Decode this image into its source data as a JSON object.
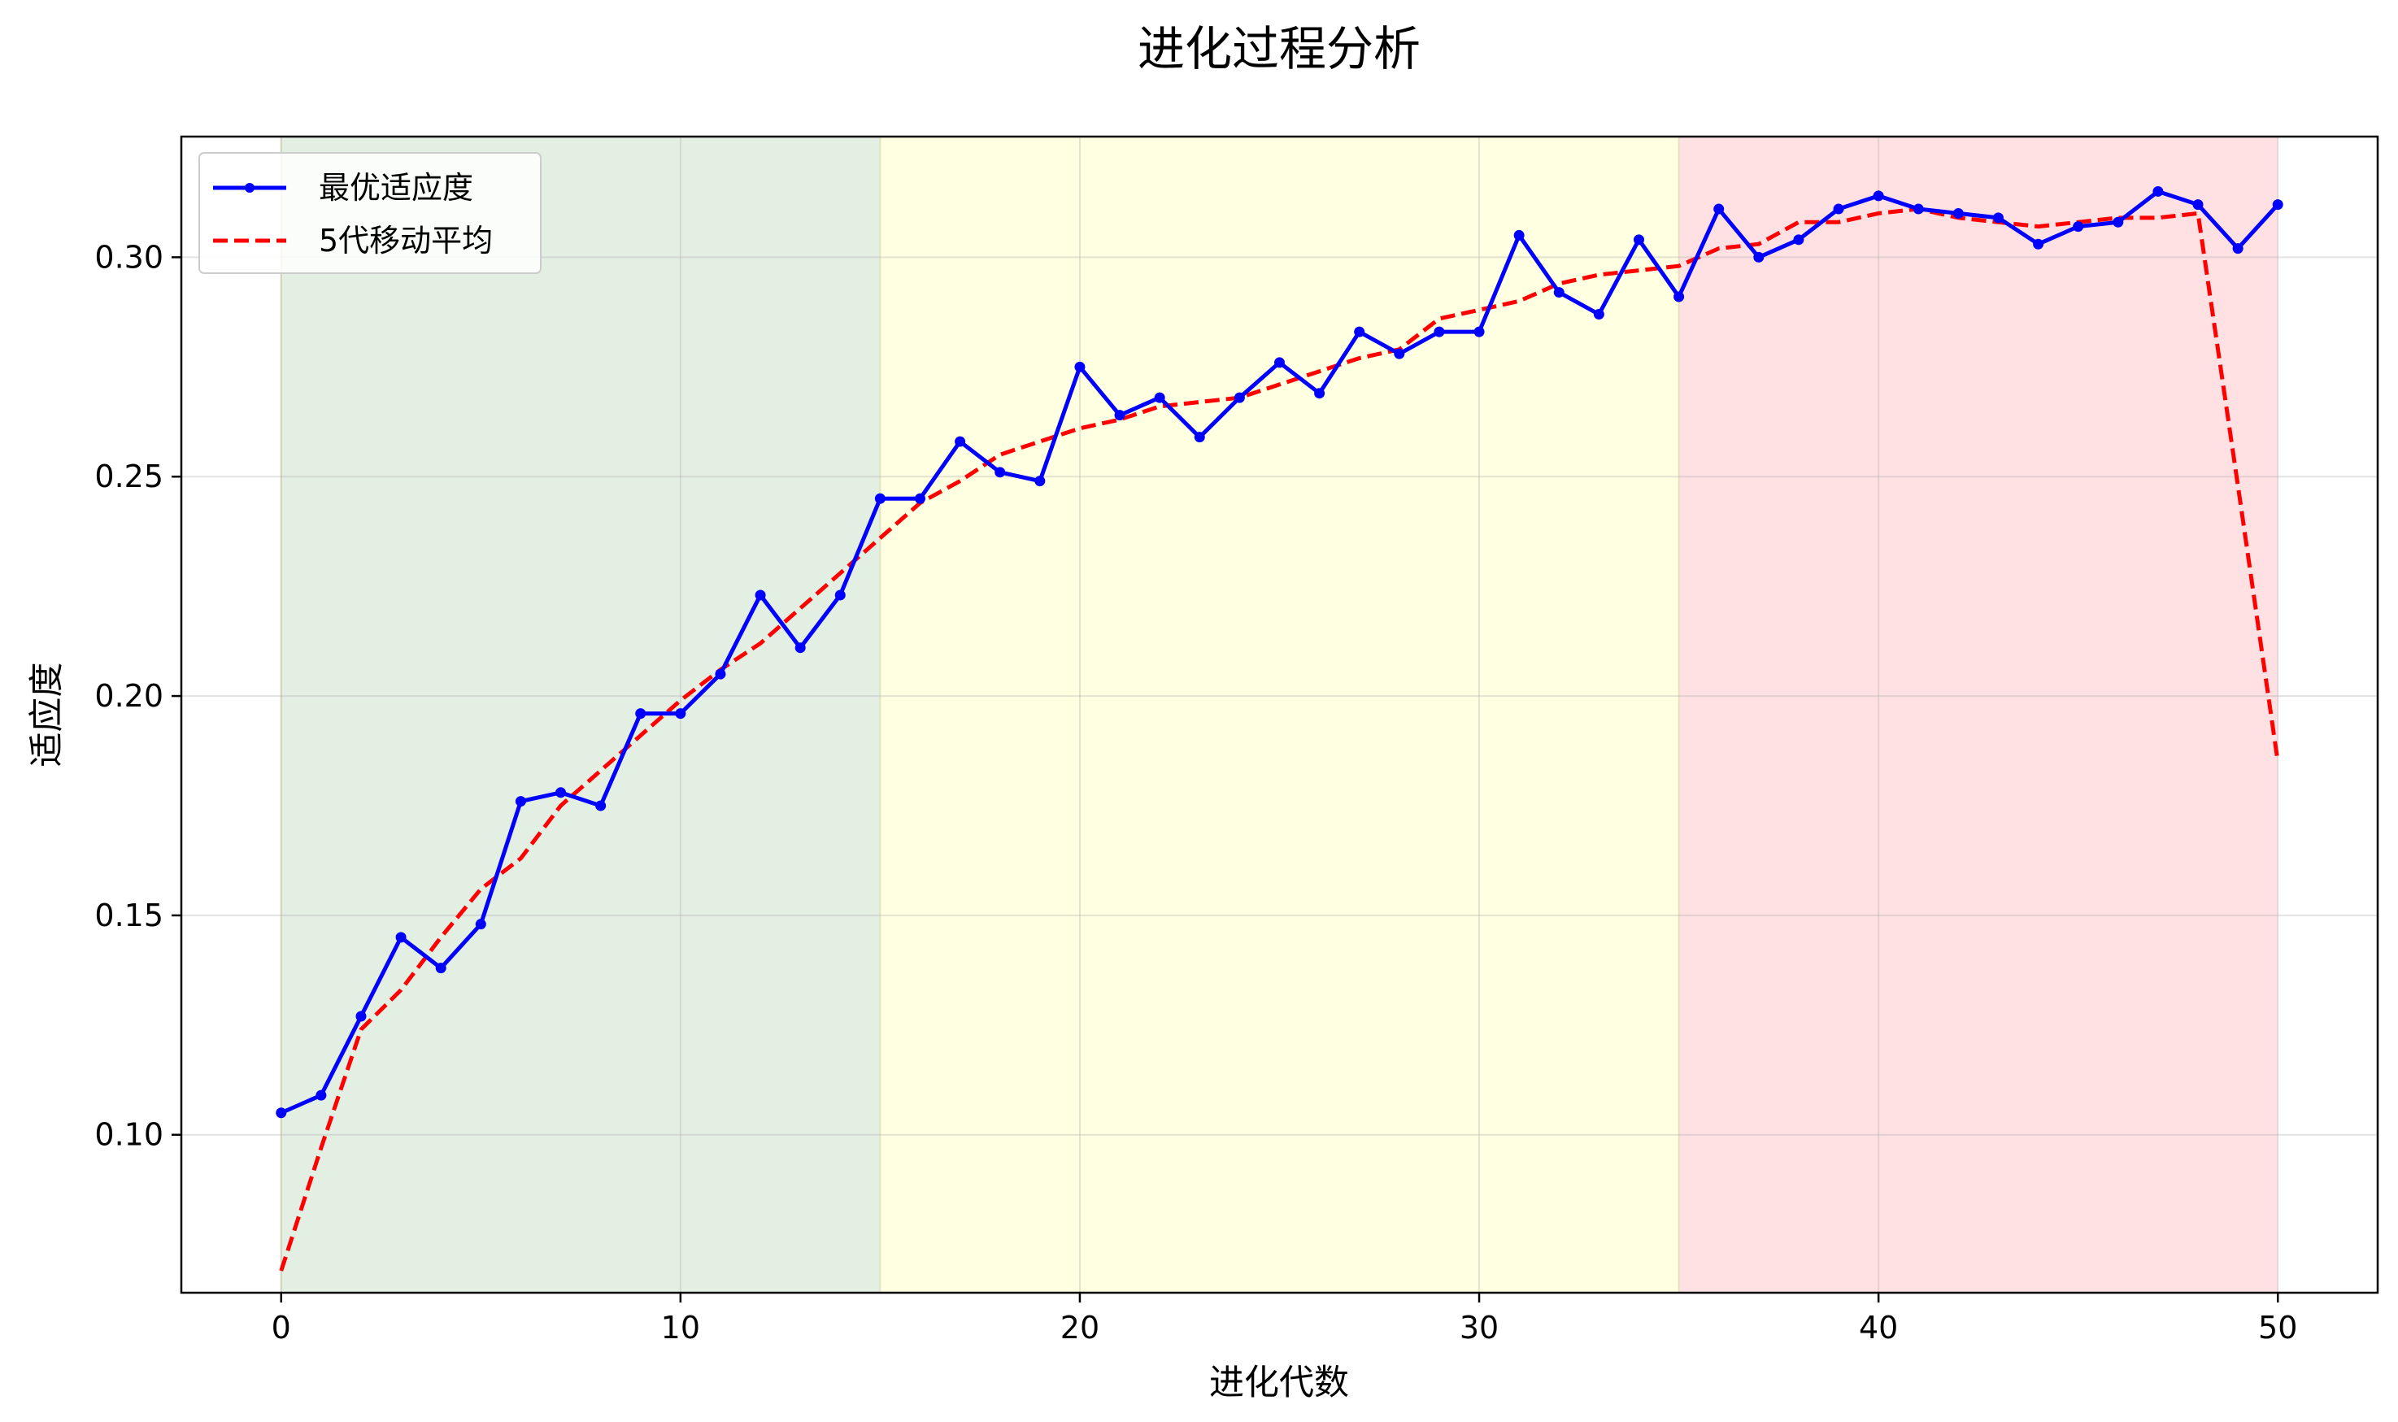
{
  "chart_data": {
    "type": "line",
    "title": "进化过程分析",
    "xlabel": "进化代数",
    "ylabel": "适应度",
    "xlim": [
      -2.5,
      52.5
    ],
    "ylim": [
      0.064,
      0.3275
    ],
    "xticks": [
      0,
      10,
      20,
      30,
      40,
      50
    ],
    "xtick_labels": [
      "0",
      "10",
      "20",
      "30",
      "40",
      "50"
    ],
    "yticks": [
      0.1,
      0.15,
      0.2,
      0.25,
      0.3
    ],
    "ytick_labels": [
      "0.10",
      "0.15",
      "0.20",
      "0.25",
      "0.30"
    ],
    "grid": true,
    "legend_position": "upper-left",
    "regions": [
      {
        "x_start": 0,
        "x_end": 15,
        "color": "#e4efe4"
      },
      {
        "x_start": 15,
        "x_end": 35,
        "color": "#ffffe1"
      },
      {
        "x_start": 35,
        "x_end": 50,
        "color": "#ffe0e3"
      }
    ],
    "series": [
      {
        "name": "最优适应度",
        "color": "#0000ff",
        "style": "solid-with-markers",
        "x": [
          0,
          1,
          2,
          3,
          4,
          5,
          6,
          7,
          8,
          9,
          10,
          11,
          12,
          13,
          14,
          15,
          16,
          17,
          18,
          19,
          20,
          21,
          22,
          23,
          24,
          25,
          26,
          27,
          28,
          29,
          30,
          31,
          32,
          33,
          34,
          35,
          36,
          37,
          38,
          39,
          40,
          41,
          42,
          43,
          44,
          45,
          46,
          47,
          48,
          49,
          50
        ],
        "values": [
          0.105,
          0.109,
          0.127,
          0.145,
          0.138,
          0.148,
          0.176,
          0.178,
          0.175,
          0.196,
          0.196,
          0.205,
          0.223,
          0.211,
          0.223,
          0.245,
          0.245,
          0.258,
          0.251,
          0.249,
          0.275,
          0.264,
          0.268,
          0.259,
          0.268,
          0.276,
          0.269,
          0.283,
          0.278,
          0.283,
          0.283,
          0.305,
          0.292,
          0.287,
          0.304,
          0.291,
          0.311,
          0.3,
          0.304,
          0.311,
          0.314,
          0.311,
          0.31,
          0.309,
          0.303,
          0.307,
          0.308,
          0.315,
          0.312,
          0.302,
          0.312
        ]
      },
      {
        "name": "5代移动平均",
        "color": "#ff0000",
        "style": "dashed",
        "x": [
          0,
          1,
          2,
          3,
          4,
          5,
          6,
          7,
          8,
          9,
          10,
          11,
          12,
          13,
          14,
          15,
          16,
          17,
          18,
          19,
          20,
          21,
          22,
          23,
          24,
          25,
          26,
          27,
          28,
          29,
          30,
          31,
          32,
          33,
          34,
          35,
          36,
          37,
          38,
          39,
          40,
          41,
          42,
          43,
          44,
          45,
          46,
          47,
          48,
          49,
          50
        ],
        "values": [
          0.069,
          0.097,
          0.124,
          0.133,
          0.145,
          0.156,
          0.163,
          0.175,
          0.183,
          0.191,
          0.199,
          0.206,
          0.212,
          0.22,
          0.228,
          0.236,
          0.244,
          0.249,
          0.255,
          0.258,
          0.261,
          0.263,
          0.266,
          0.267,
          0.268,
          0.271,
          0.274,
          0.277,
          0.279,
          0.286,
          0.288,
          0.29,
          0.294,
          0.296,
          0.297,
          0.298,
          0.302,
          0.303,
          0.308,
          0.308,
          0.31,
          0.311,
          0.309,
          0.308,
          0.307,
          0.308,
          0.309,
          0.309,
          0.31,
          0.248,
          0.185
        ]
      }
    ]
  }
}
